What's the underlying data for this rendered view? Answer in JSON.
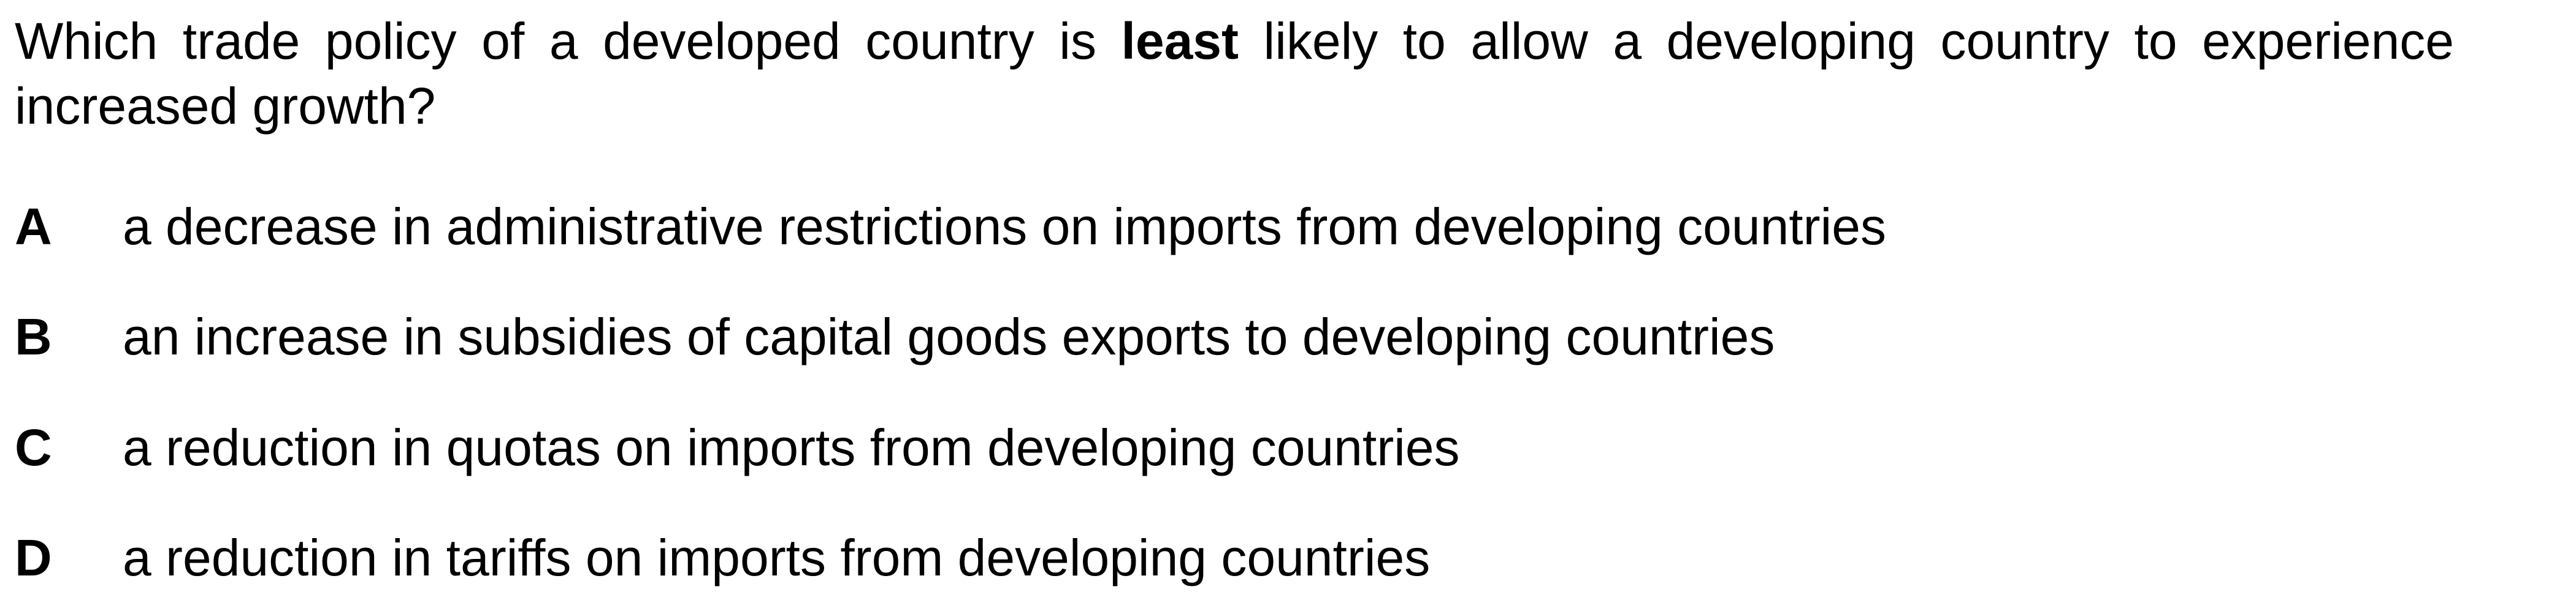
{
  "question": {
    "text_before": "Which trade policy of a developed country is ",
    "emphasis": "least",
    "text_after": " likely to allow a developing country to experience increased growth?"
  },
  "options": [
    {
      "letter": "A",
      "text": "a decrease in administrative restrictions on imports from developing countries"
    },
    {
      "letter": "B",
      "text": "an increase in subsidies of capital goods exports to developing countries"
    },
    {
      "letter": "C",
      "text": "a reduction in quotas on imports from developing countries"
    },
    {
      "letter": "D",
      "text": "a reduction in tariffs on imports from developing countries"
    }
  ]
}
